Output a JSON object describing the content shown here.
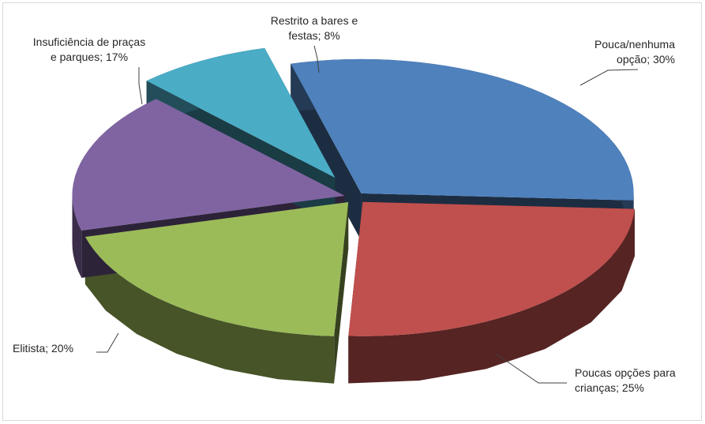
{
  "chart_data": {
    "type": "pie",
    "variant": "3d-exploded",
    "title": "",
    "slices": [
      {
        "name": "Pouca/nenhuma opção",
        "value": 30,
        "label_lines": [
          "Pouca/nenhuma",
          "opção; 30%"
        ],
        "color": "#4F81BD"
      },
      {
        "name": "Poucas opções para crianças",
        "value": 25,
        "label_lines": [
          "Poucas opções para",
          "crianças; 25%"
        ],
        "color": "#C0504D"
      },
      {
        "name": "Elitista",
        "value": 20,
        "label_lines": [
          "Elitista; 20%"
        ],
        "color": "#9BBB59"
      },
      {
        "name": "Insuficiência de praças e parques",
        "value": 17,
        "label_lines": [
          "Insuficiência de praças",
          "e parques; 17%"
        ],
        "color": "#8064A2"
      },
      {
        "name": "Restrito a bares e festas",
        "value": 8,
        "label_lines": [
          "Restrito a bares e",
          "festas; 8%"
        ],
        "color": "#4BACC6"
      }
    ],
    "legend": "none"
  }
}
